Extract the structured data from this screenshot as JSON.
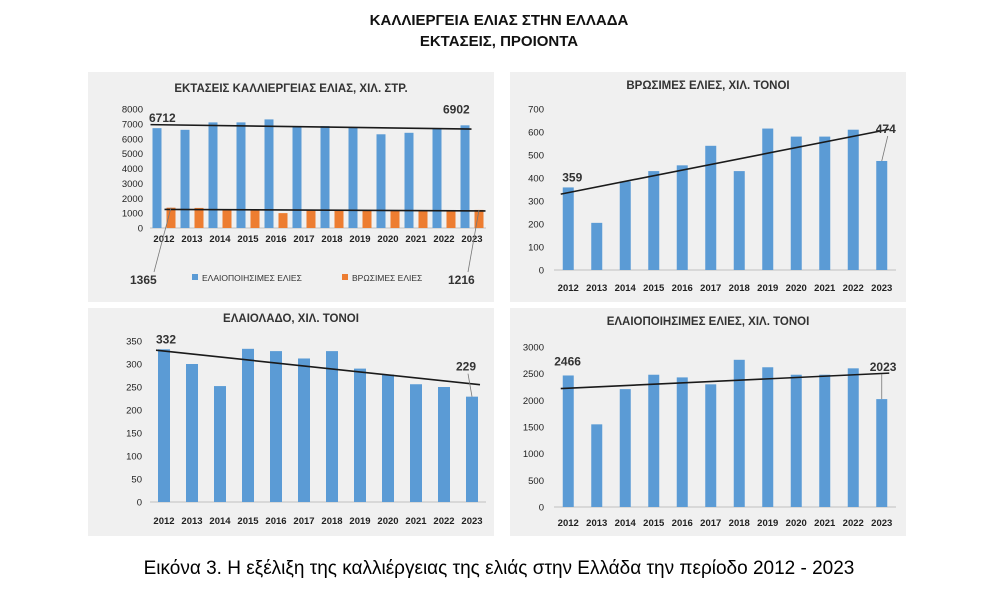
{
  "title_line1": "ΚΑΛΛΙΕΡΓΕΙΑ ΕΛΙΑΣ ΣΤΗΝ ΕΛΛΑΔΑ",
  "title_line2": "ΕΚΤΑΣΕΙΣ, ΠΡΟΙΟΝΤΑ",
  "caption": "Εικόνα 3. Η εξέλιξη της καλλιέργειας της ελιάς στην Ελλάδα την περίοδο 2012 - 2023",
  "colors": {
    "blue": "#5b9bd5",
    "orange": "#ed7d31",
    "trend": "#1a1a1a",
    "panel_bg": "#f0f0f0"
  },
  "chart_data": [
    {
      "id": "areas",
      "type": "bar",
      "title": "ΕΚΤΑΣΕΙΣ ΚΑΛΛΙΕΡΓΕΙΑΣ ΕΛΙΑΣ, ΧΙΛ. ΣΤΡ.",
      "categories": [
        "2012",
        "2013",
        "2014",
        "2015",
        "2016",
        "2017",
        "2018",
        "2019",
        "2020",
        "2021",
        "2022",
        "2023"
      ],
      "series": [
        {
          "name": "ΕΛΑΙΟΠΟΙΗΣΙΜΕΣ ΕΛΙΕΣ",
          "color": "#5b9bd5",
          "values": [
            6712,
            6600,
            7100,
            7100,
            7300,
            6850,
            6850,
            6750,
            6300,
            6400,
            6700,
            6902
          ]
        },
        {
          "name": "ΒΡΩΣΙΜΕΣ ΕΛΙΕΣ",
          "color": "#ed7d31",
          "values": [
            1365,
            1350,
            1250,
            1200,
            1000,
            1200,
            1150,
            1150,
            1150,
            1150,
            1150,
            1216
          ]
        }
      ],
      "ylim": [
        0,
        8000
      ],
      "yticks": [
        0,
        1000,
        2000,
        3000,
        4000,
        5000,
        6000,
        7000,
        8000
      ],
      "trendlines": [
        {
          "series": 0,
          "start": 6950,
          "end": 6650
        },
        {
          "series": 1,
          "start": 1250,
          "end": 1150
        }
      ],
      "annotations": [
        {
          "text": "6712",
          "series": 0,
          "index": 0
        },
        {
          "text": "6902",
          "series": 0,
          "index": 11
        },
        {
          "text": "1365",
          "series": 1,
          "index": 0
        },
        {
          "text": "1216",
          "series": 1,
          "index": 11
        }
      ],
      "legend": "bottom"
    },
    {
      "id": "table-olives",
      "type": "bar",
      "title": "ΒΡΩΣΙΜΕΣ ΕΛΙΕΣ, ΧΙΛ. ΤΟΝΟΙ",
      "categories": [
        "2012",
        "2013",
        "2014",
        "2015",
        "2016",
        "2017",
        "2018",
        "2019",
        "2020",
        "2021",
        "2022",
        "2023"
      ],
      "series": [
        {
          "color": "#5b9bd5",
          "values": [
            359,
            205,
            385,
            430,
            455,
            540,
            430,
            615,
            580,
            580,
            610,
            474
          ]
        }
      ],
      "ylim": [
        0,
        700
      ],
      "yticks": [
        0,
        100,
        200,
        300,
        400,
        500,
        600,
        700
      ],
      "trendlines": [
        {
          "series": 0,
          "start": 330,
          "end": 612
        }
      ],
      "annotations": [
        {
          "text": "359",
          "series": 0,
          "index": 0
        },
        {
          "text": "474",
          "series": 0,
          "index": 11
        }
      ]
    },
    {
      "id": "olive-oil",
      "type": "bar",
      "title": "ΕΛΑΙΟΛΑΔΟ, ΧΙΛ. ΤΟΝΟΙ",
      "categories": [
        "2012",
        "2013",
        "2014",
        "2015",
        "2016",
        "2017",
        "2018",
        "2019",
        "2020",
        "2021",
        "2022",
        "2023"
      ],
      "series": [
        {
          "color": "#5b9bd5",
          "values": [
            332,
            300,
            252,
            333,
            328,
            312,
            328,
            290,
            277,
            256,
            250,
            229
          ]
        }
      ],
      "ylim": [
        0,
        350
      ],
      "yticks": [
        0,
        50,
        100,
        150,
        200,
        250,
        300,
        350
      ],
      "trendlines": [
        {
          "series": 0,
          "start": 330,
          "end": 255
        }
      ],
      "annotations": [
        {
          "text": "332",
          "series": 0,
          "index": 0
        },
        {
          "text": "229",
          "series": 0,
          "index": 11
        }
      ]
    },
    {
      "id": "oil-olives",
      "type": "bar",
      "title": "ΕΛΑΙΟΠΟΙΗΣΙΜΕΣ  ΕΛΙΕΣ, ΧΙΛ. ΤΟΝΟΙ",
      "categories": [
        "2012",
        "2013",
        "2014",
        "2015",
        "2016",
        "2017",
        "2018",
        "2019",
        "2020",
        "2021",
        "2022",
        "2023"
      ],
      "series": [
        {
          "color": "#5b9bd5",
          "values": [
            2466,
            1550,
            2210,
            2480,
            2430,
            2300,
            2760,
            2620,
            2480,
            2480,
            2600,
            2023
          ]
        }
      ],
      "ylim": [
        0,
        3000
      ],
      "yticks": [
        0,
        500,
        1000,
        1500,
        2000,
        2500,
        3000
      ],
      "trendlines": [
        {
          "series": 0,
          "start": 2220,
          "end": 2510
        }
      ],
      "annotations": [
        {
          "text": "2466",
          "series": 0,
          "index": 0
        },
        {
          "text": "2023",
          "series": 0,
          "index": 11
        }
      ]
    }
  ]
}
